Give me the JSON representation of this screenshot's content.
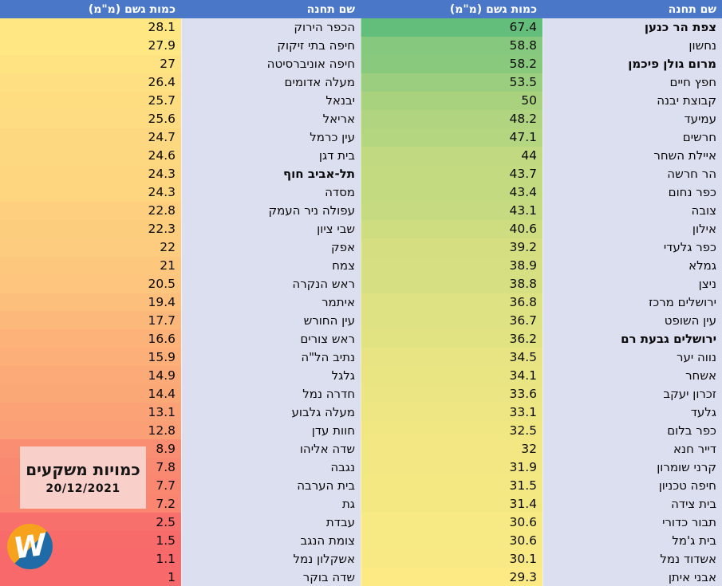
{
  "header": {
    "station_label": "שם תחנה",
    "amount_label": "כמות גשם (מ\"מ)"
  },
  "overlay": {
    "title": "כמויות משקעים",
    "date": "20/12/2021"
  },
  "logo": {
    "letter": "W"
  },
  "colors": {
    "header_bg": "#4A77C8",
    "header_text": "#FFFFFF",
    "station_col_bg": "#DCDFEF",
    "cell_text": "#0A0A0A",
    "overlay_bg": "#F8CFC9",
    "logo_orange": "#F6A21C",
    "logo_blue": "#1E6BA8",
    "logo_letter_color": "#FFFFFF"
  },
  "color_scale": {
    "min": 1,
    "mid": 28.7,
    "max": 67.4,
    "min_color": "#F8696B",
    "mid_color": "#FFEB84",
    "max_color": "#63BE7B"
  },
  "chart_data": {
    "type": "table",
    "title": "כמויות משקעים",
    "date": "20/12/2021",
    "columns": [
      "שם תחנה",
      "כמות גשם (מ\"מ)"
    ],
    "legend_note": "3-color scale: green (max 67.4) → yellow (≈28.7) → red (min 1), rain amount in mm",
    "tables": [
      {
        "position": "right",
        "rows": [
          {
            "station": "צפת הר כנען",
            "value": "67.4",
            "bold": true
          },
          {
            "station": "נחשון",
            "value": "58.8"
          },
          {
            "station": "מרום גולן פיכמן",
            "value": "58.2",
            "bold": true
          },
          {
            "station": "חפץ חיים",
            "value": "53.5"
          },
          {
            "station": "קבוצת יבנה",
            "value": "50"
          },
          {
            "station": "עמיעד",
            "value": "48.2"
          },
          {
            "station": "חרשים",
            "value": "47.1"
          },
          {
            "station": "איילת השחר",
            "value": "44"
          },
          {
            "station": "הר חרשה",
            "value": "43.7"
          },
          {
            "station": "כפר נחום",
            "value": "43.4"
          },
          {
            "station": "צובה",
            "value": "43.1"
          },
          {
            "station": "אילון",
            "value": "40.6"
          },
          {
            "station": "כפר גלעדי",
            "value": "39.2"
          },
          {
            "station": "גמלא",
            "value": "38.9"
          },
          {
            "station": "ניצן",
            "value": "38.8"
          },
          {
            "station": "ירושלים מרכז",
            "value": "36.8"
          },
          {
            "station": "עין השופט",
            "value": "36.7"
          },
          {
            "station": "ירושלים גבעת רם",
            "value": "36.2",
            "bold": true
          },
          {
            "station": "נווה יער",
            "value": "34.5"
          },
          {
            "station": "אשחר",
            "value": "34.1"
          },
          {
            "station": "זכרון יעקב",
            "value": "33.6"
          },
          {
            "station": "גלעד",
            "value": "33.1"
          },
          {
            "station": "כפר בלום",
            "value": "32.5"
          },
          {
            "station": "דייר חנא",
            "value": "32"
          },
          {
            "station": "קרני שומרון",
            "value": "31.9"
          },
          {
            "station": "חיפה טכניון",
            "value": "31.5"
          },
          {
            "station": "בית צידה",
            "value": "31.4"
          },
          {
            "station": "תבור כדורי",
            "value": "30.6"
          },
          {
            "station": "בית ג'מל",
            "value": "30.6"
          },
          {
            "station": "אשדוד נמל",
            "value": "30.1"
          },
          {
            "station": "אבני איתן",
            "value": "29.3"
          }
        ]
      },
      {
        "position": "left",
        "rows": [
          {
            "station": "הכפר הירוק",
            "value": "28.1"
          },
          {
            "station": "חיפה בתי זיקוק",
            "value": "27.9"
          },
          {
            "station": "חיפה אוניברסיטה",
            "value": "27"
          },
          {
            "station": "מעלה אדומים",
            "value": "26.4"
          },
          {
            "station": "יבנאל",
            "value": "25.7"
          },
          {
            "station": "אריאל",
            "value": "25.6"
          },
          {
            "station": "עין כרמל",
            "value": "24.7"
          },
          {
            "station": "בית דגן",
            "value": "24.6"
          },
          {
            "station": "תל-אביב חוף",
            "value": "24.3",
            "bold": true
          },
          {
            "station": "מסדה",
            "value": "24.3"
          },
          {
            "station": "עפולה ניר העמק",
            "value": "22.8"
          },
          {
            "station": "שבי ציון",
            "value": "22.3"
          },
          {
            "station": "אפק",
            "value": "22"
          },
          {
            "station": "צמח",
            "value": "21"
          },
          {
            "station": "ראש הנקרה",
            "value": "20.5"
          },
          {
            "station": "איתמר",
            "value": "19.4"
          },
          {
            "station": "עין החורש",
            "value": "17.7"
          },
          {
            "station": "ראש צורים",
            "value": "16.6"
          },
          {
            "station": "נתיב הל\"ה",
            "value": "15.9"
          },
          {
            "station": "גלגל",
            "value": "14.9"
          },
          {
            "station": "חדרה נמל",
            "value": "14.4"
          },
          {
            "station": "מעלה גלבוע",
            "value": "13.1"
          },
          {
            "station": "חוות עדן",
            "value": "12.8"
          },
          {
            "station": "שדה אליהו",
            "value": "8.9"
          },
          {
            "station": "נגבה",
            "value": "7.8"
          },
          {
            "station": "בית הערבה",
            "value": "7.7"
          },
          {
            "station": "גת",
            "value": "7.2"
          },
          {
            "station": "עבדת",
            "value": "2.5"
          },
          {
            "station": "צומת הנגב",
            "value": "1.5"
          },
          {
            "station": "אשקלון נמל",
            "value": "1.1"
          },
          {
            "station": "שדה בוקר",
            "value": "1"
          }
        ]
      }
    ]
  }
}
